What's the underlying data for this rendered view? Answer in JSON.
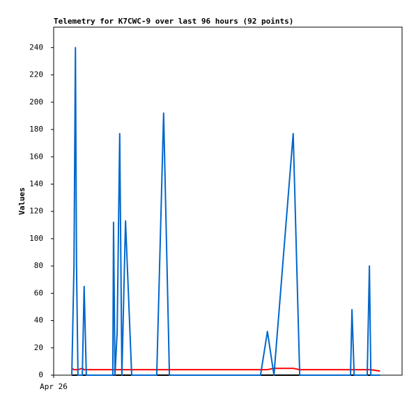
{
  "chart_data": {
    "type": "line",
    "title": "Telemetry for K7CWC-9 over last 96 hours (92 points)",
    "y_label": "Values",
    "x": [
      5.0,
      5.6,
      6.0,
      6.3,
      6.7,
      7.9,
      8.4,
      9.0,
      16.3,
      16.5,
      16.9,
      17.5,
      18.2,
      18.8,
      19.8,
      21.5,
      28.4,
      30.3,
      31.9,
      57.0,
      58.9,
      60.7,
      66.0,
      67.8,
      81.8,
      82.2,
      82.8,
      86.4,
      87.0,
      87.4,
      89.9
    ],
    "series": [
      {
        "color": "#000000",
        "values": [
          0,
          0,
          0,
          0,
          0,
          0,
          0,
          0,
          0,
          0,
          0,
          0,
          0,
          0,
          0,
          0,
          0,
          0,
          0,
          0,
          0,
          0,
          0,
          0,
          0,
          0,
          0,
          0,
          0,
          0,
          0
        ]
      },
      {
        "color": "#ff0000",
        "values": [
          5,
          4,
          4,
          4,
          4,
          5,
          4,
          4,
          4,
          4,
          4,
          4,
          4,
          4,
          4,
          4,
          4,
          4,
          4,
          4,
          4,
          5,
          5,
          4,
          4,
          4,
          4,
          4,
          4,
          4,
          3
        ]
      },
      {
        "color": "#0066cc",
        "values": [
          0,
          80,
          240,
          80,
          0,
          0,
          65,
          0,
          0,
          112,
          0,
          32,
          177,
          0,
          113,
          0,
          0,
          192,
          0,
          0,
          32,
          0,
          177,
          0,
          0,
          48,
          0,
          0,
          80,
          0,
          0
        ]
      }
    ],
    "xlim": [
      0,
      96
    ],
    "xticks": [
      {
        "value": 0,
        "label": "Apr 26"
      }
    ],
    "ylim": [
      0,
      255
    ],
    "yticks": [
      0,
      20,
      40,
      60,
      80,
      100,
      120,
      140,
      160,
      180,
      200,
      220,
      240
    ]
  }
}
